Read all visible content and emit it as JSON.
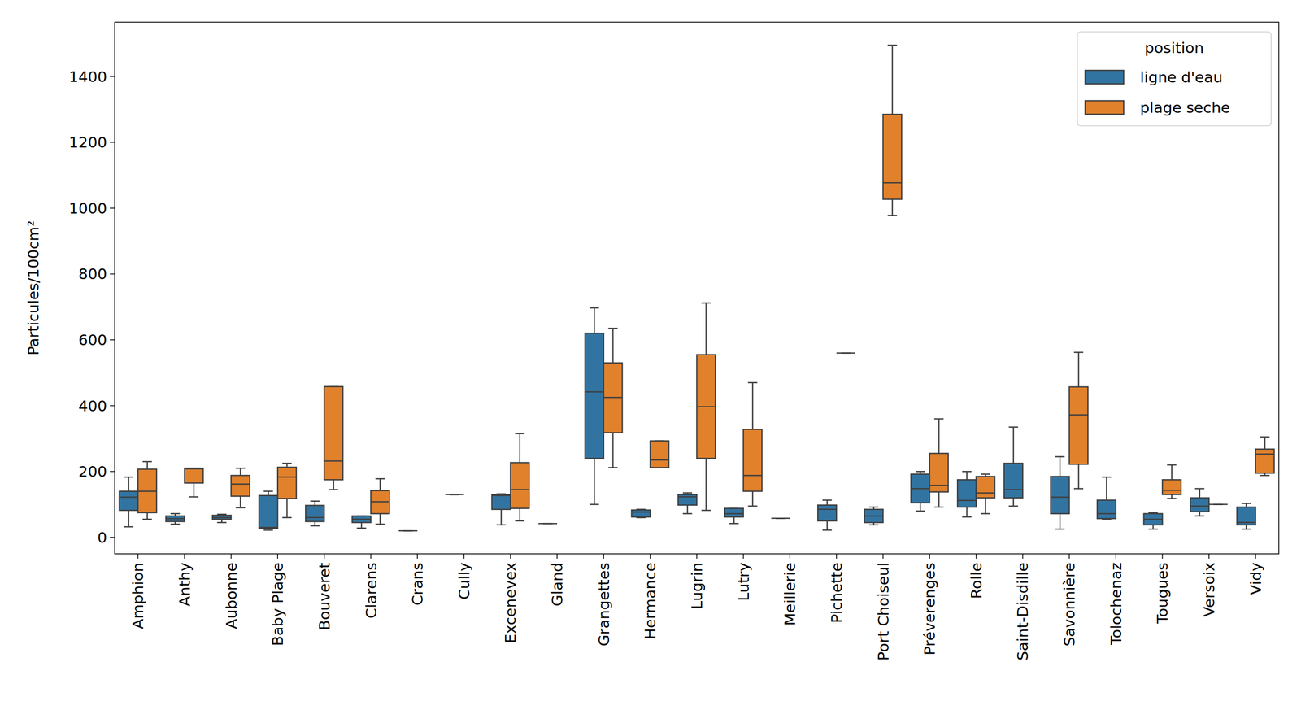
{
  "chart_data": {
    "type": "box",
    "y_label": "Particules/100cm²",
    "categories": [
      "Amphion",
      "Anthy",
      "Aubonne",
      "Baby Plage",
      "Bouveret",
      "Clarens",
      "Crans",
      "Cully",
      "Excenevex",
      "Gland",
      "Grangettes",
      "Hermance",
      "Lugrin",
      "Lutry",
      "Meillerie",
      "Pichette",
      "Port Choiseul",
      "Préverenges",
      "Rolle",
      "Saint-Disdille",
      "Savonnière",
      "Tolochenaz",
      "Tougues",
      "Versoix",
      "Vidy"
    ],
    "legend_title": "position",
    "legend": "upper right",
    "ylim": [
      -50,
      1565
    ],
    "yticks": [
      0,
      200,
      400,
      600,
      800,
      1000,
      1200,
      1400
    ],
    "series": [
      {
        "name": "ligne d'eau",
        "color": "#3274a1",
        "values": [
          [
            32,
            82,
            122,
            140,
            183
          ],
          [
            40,
            48,
            57,
            65,
            72
          ],
          [
            45,
            55,
            60,
            67,
            70
          ],
          [
            22,
            27,
            30,
            127,
            140
          ],
          [
            35,
            48,
            60,
            97,
            110
          ],
          [
            28,
            45,
            55,
            65,
            65
          ],
          [
            20,
            20,
            20,
            20,
            20
          ],
          [
            130,
            130,
            130,
            130,
            130
          ],
          [
            38,
            85,
            127,
            130,
            132
          ],
          [
            42,
            42,
            42,
            42,
            42
          ],
          [
            100,
            240,
            442,
            620,
            697
          ],
          [
            60,
            62,
            77,
            83,
            85
          ],
          [
            72,
            98,
            123,
            130,
            135
          ],
          [
            42,
            62,
            72,
            88,
            88
          ],
          [
            58,
            58,
            58,
            58,
            58
          ],
          [
            22,
            50,
            85,
            98,
            113
          ],
          [
            38,
            45,
            65,
            85,
            92
          ],
          [
            80,
            105,
            148,
            192,
            200
          ],
          [
            62,
            92,
            112,
            175,
            200
          ],
          [
            95,
            120,
            145,
            225,
            335
          ],
          [
            25,
            72,
            122,
            185,
            245
          ],
          [
            55,
            57,
            72,
            113,
            183
          ],
          [
            25,
            38,
            55,
            72,
            75
          ],
          [
            65,
            78,
            95,
            120,
            148
          ],
          [
            25,
            38,
            45,
            92,
            103
          ]
        ]
      },
      {
        "name": "plage seche",
        "color": "#e1812c",
        "values": [
          [
            55,
            75,
            140,
            207,
            230
          ],
          [
            123,
            165,
            208,
            210,
            210
          ],
          [
            90,
            125,
            162,
            188,
            210
          ],
          [
            60,
            118,
            183,
            213,
            225
          ],
          [
            145,
            175,
            232,
            458,
            458
          ],
          [
            40,
            72,
            108,
            142,
            178
          ],
          null,
          null,
          [
            50,
            88,
            145,
            227,
            315
          ],
          null,
          [
            212,
            318,
            425,
            530,
            635
          ],
          [
            212,
            212,
            235,
            293,
            293
          ],
          [
            82,
            240,
            397,
            555,
            712
          ],
          [
            95,
            140,
            188,
            328,
            470
          ],
          null,
          [
            560,
            560,
            560,
            560,
            560
          ],
          [
            978,
            1027,
            1077,
            1285,
            1495
          ],
          [
            92,
            138,
            158,
            255,
            360
          ],
          [
            72,
            120,
            135,
            185,
            192
          ],
          null,
          [
            148,
            222,
            372,
            457,
            562
          ],
          null,
          [
            118,
            130,
            143,
            175,
            220
          ],
          [
            100,
            100,
            100,
            100,
            100
          ],
          [
            188,
            195,
            253,
            268,
            305
          ]
        ]
      }
    ]
  }
}
